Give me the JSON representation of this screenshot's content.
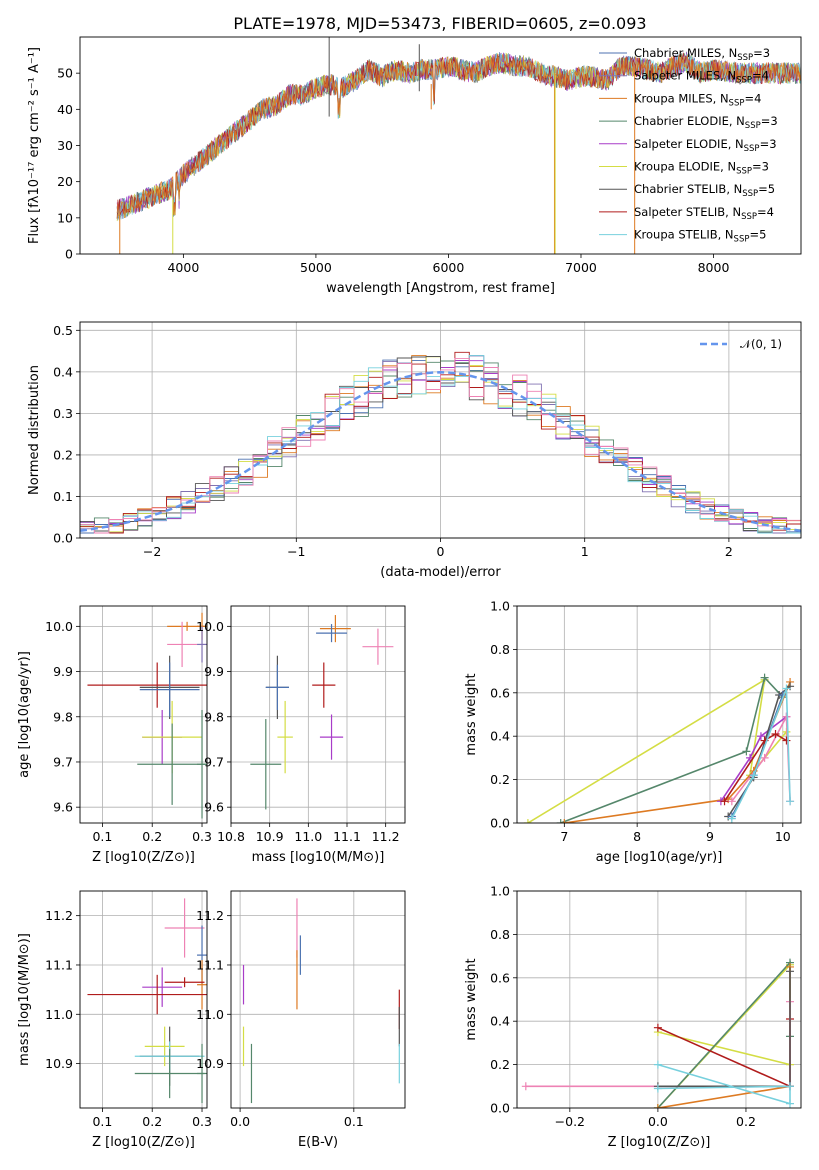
{
  "figure": {
    "title": "PLATE=1978, MJD=53473, FIBERID=0605, z=0.093"
  },
  "colors": {
    "chabrier_miles": "#4c72b0",
    "salpeter_miles": "#8172b2",
    "kroupa_miles": "#dd7a22",
    "chabrier_elodie": "#55876b",
    "salpeter_elodie": "#a83cc8",
    "kroupa_elodie": "#d4dd44",
    "chabrier_stelib": "#555555",
    "salpeter_stelib": "#b01c1c",
    "kroupa_stelib": "#77d0dd",
    "pink": "#ee82b4",
    "gaussian": "#6495ed"
  },
  "chart_data": [
    {
      "id": "spectrum",
      "type": "line",
      "title": "PLATE=1978, MJD=53473, FIBERID=0605, z=0.093",
      "xlabel": "wavelength [Angstrom, rest frame]",
      "ylabel": "Flux [fλ10⁻¹⁷ erg cm⁻² s⁻¹ A⁻¹]",
      "xlim": [
        3220,
        8660
      ],
      "ylim": [
        0,
        60
      ],
      "xticks": [
        "4000",
        "5000",
        "6000",
        "7000",
        "8000"
      ],
      "yticks": [
        "0",
        "10",
        "20",
        "30",
        "40",
        "50"
      ],
      "grid": false,
      "legend_position": "top-right",
      "x": [
        3500,
        3700,
        3900,
        4000,
        4100,
        4200,
        4300,
        4400,
        4500,
        4600,
        4700,
        4800,
        4900,
        5000,
        5100,
        5200,
        5300,
        5400,
        5500,
        5600,
        5700,
        5800,
        5900,
        6000,
        6100,
        6200,
        6300,
        6400,
        6500,
        6600,
        6700,
        6800,
        6900,
        7000,
        7100,
        7200,
        7300,
        7400,
        7500,
        7600,
        7700,
        7800,
        7900,
        8000,
        8200,
        8400,
        8600
      ],
      "y": [
        12,
        15,
        18,
        22,
        25,
        28,
        31,
        34,
        37,
        40,
        41,
        44,
        44,
        46,
        47,
        46,
        48,
        51,
        49,
        51,
        50,
        51,
        51,
        52,
        51,
        50,
        52,
        53,
        52,
        52,
        50,
        49,
        48,
        49,
        49,
        48,
        52,
        52,
        51,
        50,
        52,
        53,
        50,
        51,
        50,
        50,
        50
      ],
      "series": [
        {
          "name": "Chabrier MILES, N_SSP=3",
          "label_main": "Chabrier MILES, N",
          "label_sub": "SSP",
          "label_tail": "=3",
          "color": "#4c72b0"
        },
        {
          "name": "Salpeter MILES, N_SSP=4",
          "label_main": "Salpeter MILES, N",
          "label_sub": "SSP",
          "label_tail": "=4",
          "color": "#8172b2"
        },
        {
          "name": "Kroupa MILES, N_SSP=4",
          "label_main": "Kroupa MILES, N",
          "label_sub": "SSP",
          "label_tail": "=4",
          "color": "#dd7a22"
        },
        {
          "name": "Chabrier ELODIE, N_SSP=3",
          "label_main": "Chabrier ELODIE, N",
          "label_sub": "SSP",
          "label_tail": "=3",
          "color": "#55876b"
        },
        {
          "name": "Salpeter ELODIE, N_SSP=3",
          "label_main": "Salpeter ELODIE, N",
          "label_sub": "SSP",
          "label_tail": "=3",
          "color": "#a83cc8"
        },
        {
          "name": "Kroupa ELODIE, N_SSP=3",
          "label_main": "Kroupa ELODIE, N",
          "label_sub": "SSP",
          "label_tail": "=3",
          "color": "#d4dd44"
        },
        {
          "name": "Chabrier STELIB, N_SSP=5",
          "label_main": "Chabrier STELIB, N",
          "label_sub": "SSP",
          "label_tail": "=5",
          "color": "#555555"
        },
        {
          "name": "Salpeter STELIB, N_SSP=4",
          "label_main": "Salpeter STELIB, N",
          "label_sub": "SSP",
          "label_tail": "=4",
          "color": "#b01c1c"
        },
        {
          "name": "Kroupa STELIB, N_SSP=5",
          "label_main": "Kroupa STELIB, N",
          "label_sub": "SSP",
          "label_tail": "=5",
          "color": "#77d0dd"
        }
      ]
    },
    {
      "id": "residuals",
      "type": "line",
      "xlabel": "(data-model)/error",
      "ylabel": "Normed distribution",
      "xlim": [
        -2.5,
        2.5
      ],
      "ylim": [
        0,
        0.52
      ],
      "xticks": [
        "−2",
        "−1",
        "0",
        "1",
        "2"
      ],
      "yticks": [
        "0.0",
        "0.1",
        "0.2",
        "0.3",
        "0.4",
        "0.5"
      ],
      "grid": true,
      "legend_position": "top-right",
      "legend_label": "𝒩(0, 1)",
      "bin_width": 0.1
    },
    {
      "id": "age_vs_z",
      "type": "scatter",
      "xlabel": "Z [log10(Z/Z⊙)]",
      "ylabel": "age  [log10(age/yr)]",
      "xlim": [
        0.055,
        0.31
      ],
      "ylim": [
        9.565,
        10.045
      ],
      "xticks": [
        "0.1",
        "0.2",
        "0.3"
      ],
      "yticks": [
        "9.6",
        "9.7",
        "9.8",
        "9.9",
        "10.0"
      ],
      "grid": true,
      "points": [
        {
          "x": 0.3,
          "y": 10.0,
          "xerr": 0.01,
          "yerr": 0.03,
          "color": "#dd7a22"
        },
        {
          "x": 0.27,
          "y": 10.0,
          "xerr": 0.04,
          "yerr": 0.01,
          "color": "#dd7a22"
        },
        {
          "x": 0.26,
          "y": 9.96,
          "xerr": 0.03,
          "yerr": 0.05,
          "color": "#ee82b4"
        },
        {
          "x": 0.3,
          "y": 9.96,
          "xerr": 0.01,
          "yerr": 0.04,
          "color": "#8172b2"
        },
        {
          "x": 0.21,
          "y": 9.87,
          "xerr": 0.14,
          "yerr": 0.05,
          "color": "#b01c1c"
        },
        {
          "x": 0.235,
          "y": 9.865,
          "xerr": 0.06,
          "yerr": 0.07,
          "color": "#555555"
        },
        {
          "x": 0.235,
          "y": 9.86,
          "xerr": 0.06,
          "yerr": 0.06,
          "color": "#4c72b0"
        },
        {
          "x": 0.22,
          "y": 9.755,
          "xerr": 0.04,
          "yerr": 0.06,
          "color": "#a83cc8"
        },
        {
          "x": 0.24,
          "y": 9.755,
          "xerr": 0.06,
          "yerr": 0.08,
          "color": "#d4dd44"
        },
        {
          "x": 0.24,
          "y": 9.695,
          "xerr": 0.07,
          "yerr": 0.09,
          "color": "#55876b"
        },
        {
          "x": 0.3,
          "y": 9.695,
          "xerr": 0.01,
          "yerr": 0.12,
          "color": "#55876b"
        }
      ]
    },
    {
      "id": "age_vs_mass",
      "type": "scatter",
      "xlabel": "mass [log10(M/M⊙)]",
      "ylabel": "",
      "xlim": [
        10.8,
        11.25
      ],
      "ylim": [
        9.565,
        10.045
      ],
      "xticks": [
        "10.8",
        "10.9",
        "11.0",
        "11.1",
        "11.2"
      ],
      "yticks": [
        "9.6",
        "9.7",
        "9.8",
        "9.9",
        "10.0"
      ],
      "grid": true,
      "points": [
        {
          "x": 11.07,
          "y": 9.995,
          "xerr": 0.04,
          "yerr": 0.03,
          "color": "#dd7a22"
        },
        {
          "x": 11.06,
          "y": 9.985,
          "xerr": 0.04,
          "yerr": 0.02,
          "color": "#4c72b0"
        },
        {
          "x": 11.18,
          "y": 9.955,
          "xerr": 0.04,
          "yerr": 0.04,
          "color": "#ee82b4"
        },
        {
          "x": 10.92,
          "y": 9.865,
          "xerr": 0.03,
          "yerr": 0.07,
          "color": "#555555"
        },
        {
          "x": 10.92,
          "y": 9.865,
          "xerr": 0.03,
          "yerr": 0.05,
          "color": "#4c72b0"
        },
        {
          "x": 11.04,
          "y": 9.87,
          "xerr": 0.03,
          "yerr": 0.05,
          "color": "#b01c1c"
        },
        {
          "x": 11.06,
          "y": 9.755,
          "xerr": 0.03,
          "yerr": 0.05,
          "color": "#a83cc8"
        },
        {
          "x": 10.94,
          "y": 9.755,
          "xerr": 0.02,
          "yerr": 0.08,
          "color": "#d4dd44"
        },
        {
          "x": 10.89,
          "y": 9.695,
          "xerr": 0.04,
          "yerr": 0.1,
          "color": "#55876b"
        }
      ]
    },
    {
      "id": "mass_weight_vs_age",
      "type": "line",
      "xlabel": "age  [log10(age/yr)]",
      "ylabel": "mass weight",
      "xlim": [
        6.35,
        10.25
      ],
      "ylim": [
        0,
        1.0
      ],
      "xticks": [
        "7",
        "8",
        "9",
        "10"
      ],
      "yticks": [
        "0.0",
        "0.2",
        "0.4",
        "0.6",
        "0.8",
        "1.0"
      ],
      "grid": true,
      "series": [
        {
          "color": "#d4dd44",
          "x": [
            6.5,
            9.75,
            9.55,
            10.05
          ],
          "y": [
            0.0,
            0.66,
            0.22,
            0.42
          ]
        },
        {
          "color": "#55876b",
          "x": [
            6.95,
            9.5,
            9.75,
            10.0
          ],
          "y": [
            0.0,
            0.33,
            0.67,
            0.58
          ]
        },
        {
          "color": "#dd7a22",
          "x": [
            7.0,
            9.25,
            9.6,
            10.1
          ],
          "y": [
            0.0,
            0.11,
            0.24,
            0.65
          ]
        },
        {
          "color": "#a83cc8",
          "x": [
            9.15,
            9.55,
            9.7,
            10.05
          ],
          "y": [
            0.1,
            0.3,
            0.4,
            0.49
          ]
        },
        {
          "color": "#ee82b4",
          "x": [
            9.3,
            9.75,
            10.05,
            10.1
          ],
          "y": [
            0.1,
            0.3,
            0.49,
            0.1
          ]
        },
        {
          "color": "#555555",
          "x": [
            9.25,
            9.6,
            9.95,
            10.1
          ],
          "y": [
            0.03,
            0.21,
            0.59,
            0.63
          ]
        },
        {
          "color": "#4c72b0",
          "x": [
            9.3,
            9.6,
            10.0
          ],
          "y": [
            0.03,
            0.22,
            0.59
          ]
        },
        {
          "color": "#b01c1c",
          "x": [
            9.2,
            9.75,
            9.9,
            10.05
          ],
          "y": [
            0.1,
            0.38,
            0.41,
            0.38
          ]
        },
        {
          "color": "#77d0dd",
          "x": [
            9.3,
            9.6,
            10.05,
            10.1
          ],
          "y": [
            0.02,
            0.22,
            0.62,
            0.1
          ]
        }
      ]
    },
    {
      "id": "mass_vs_z",
      "type": "scatter",
      "xlabel": "Z [log10(Z/Z⊙)]",
      "ylabel": "mass [log10(M/M⊙)]",
      "xlim": [
        0.055,
        0.31
      ],
      "ylim": [
        10.81,
        11.25
      ],
      "xticks": [
        "0.1",
        "0.2",
        "0.3"
      ],
      "yticks": [
        "10.9",
        "11.0",
        "11.1",
        "11.2"
      ],
      "grid": true,
      "points": [
        {
          "x": 0.265,
          "y": 11.175,
          "xerr": 0.04,
          "yerr": 0.06,
          "color": "#ee82b4"
        },
        {
          "x": 0.3,
          "y": 11.12,
          "xerr": 0.01,
          "yerr": 0.06,
          "color": "#4c72b0"
        },
        {
          "x": 0.3,
          "y": 11.06,
          "xerr": 0.01,
          "yerr": 0.05,
          "color": "#dd7a22"
        },
        {
          "x": 0.265,
          "y": 11.065,
          "xerr": 0.04,
          "yerr": 0.01,
          "color": "#b01c1c"
        },
        {
          "x": 0.22,
          "y": 11.055,
          "xerr": 0.04,
          "yerr": 0.04,
          "color": "#a83cc8"
        },
        {
          "x": 0.21,
          "y": 11.04,
          "xerr": 0.14,
          "yerr": 0.04,
          "color": "#b01c1c"
        },
        {
          "x": 0.235,
          "y": 10.915,
          "xerr": 0.06,
          "yerr": 0.06,
          "color": "#555555"
        },
        {
          "x": 0.225,
          "y": 10.935,
          "xerr": 0.04,
          "yerr": 0.04,
          "color": "#d4dd44"
        },
        {
          "x": 0.235,
          "y": 10.915,
          "xerr": 0.07,
          "yerr": 0.03,
          "color": "#77d0dd"
        },
        {
          "x": 0.235,
          "y": 10.88,
          "xerr": 0.07,
          "yerr": 0.05,
          "color": "#55876b"
        },
        {
          "x": 0.3,
          "y": 10.88,
          "xerr": 0.01,
          "yerr": 0.06,
          "color": "#55876b"
        }
      ]
    },
    {
      "id": "mass_vs_ebv",
      "type": "scatter",
      "xlabel": "E(B-V)",
      "ylabel": "",
      "xlim": [
        -0.008,
        0.145
      ],
      "ylim": [
        10.81,
        11.25
      ],
      "xticks": [
        "0.0",
        "0.1"
      ],
      "yticks": [
        "10.9",
        "11.0",
        "11.1",
        "11.2"
      ],
      "grid": true,
      "points": [
        {
          "x": 0.05,
          "y": 11.175,
          "xerr": 0,
          "yerr": 0.06,
          "color": "#ee82b4"
        },
        {
          "x": 0.053,
          "y": 11.12,
          "xerr": 0,
          "yerr": 0.04,
          "color": "#4c72b0"
        },
        {
          "x": 0.05,
          "y": 11.07,
          "xerr": 0,
          "yerr": 0.06,
          "color": "#dd7a22"
        },
        {
          "x": 0.003,
          "y": 11.06,
          "xerr": 0,
          "yerr": 0.04,
          "color": "#a83cc8"
        },
        {
          "x": 0.14,
          "y": 11.01,
          "xerr": 0,
          "yerr": 0.04,
          "color": "#b01c1c"
        },
        {
          "x": 0.14,
          "y": 10.975,
          "xerr": 0,
          "yerr": 0.04,
          "color": "#555555"
        },
        {
          "x": 0.003,
          "y": 10.935,
          "xerr": 0,
          "yerr": 0.04,
          "color": "#d4dd44"
        },
        {
          "x": 0.01,
          "y": 10.88,
          "xerr": 0,
          "yerr": 0.06,
          "color": "#55876b"
        },
        {
          "x": 0.14,
          "y": 10.9,
          "xerr": 0,
          "yerr": 0.04,
          "color": "#77d0dd"
        }
      ]
    },
    {
      "id": "mass_weight_vs_z",
      "type": "line",
      "xlabel": "Z [log10(Z/Z⊙)]",
      "ylabel": "mass weight",
      "xlim": [
        -0.32,
        0.325
      ],
      "ylim": [
        0,
        1.0
      ],
      "xticks": [
        "−0.2",
        "0.0",
        "0.2"
      ],
      "yticks": [
        "0.0",
        "0.2",
        "0.4",
        "0.6",
        "0.8",
        "1.0"
      ],
      "grid": true,
      "series": [
        {
          "color": "#d4dd44",
          "x": [
            0.0,
            0.3,
            0.3,
            0.0
          ],
          "y": [
            0.0,
            0.66,
            0.2,
            0.35
          ]
        },
        {
          "color": "#55876b",
          "x": [
            0.0,
            0.3,
            0.3
          ],
          "y": [
            0.0,
            0.67,
            0.33
          ]
        },
        {
          "color": "#dd7a22",
          "x": [
            0.0,
            0.3,
            0.3
          ],
          "y": [
            0.0,
            0.1,
            0.65
          ]
        },
        {
          "color": "#b01c1c",
          "x": [
            0.0,
            0.3,
            0.3
          ],
          "y": [
            0.37,
            0.1,
            0.41
          ]
        },
        {
          "color": "#ee82b4",
          "x": [
            -0.3,
            0.3,
            0.3
          ],
          "y": [
            0.1,
            0.1,
            0.49
          ]
        },
        {
          "color": "#555555",
          "x": [
            0.0,
            0.3,
            0.3
          ],
          "y": [
            0.1,
            0.1,
            0.63
          ]
        },
        {
          "color": "#77d0dd",
          "x": [
            0.0,
            0.3,
            0.3,
            0.0
          ],
          "y": [
            0.09,
            0.1,
            0.02,
            0.2
          ]
        }
      ]
    }
  ]
}
